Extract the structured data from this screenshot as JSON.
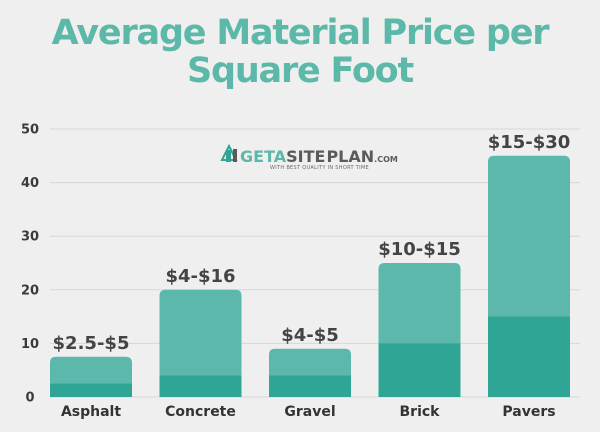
{
  "colors": {
    "background": "#efefef",
    "title": "#5cb8a8",
    "bar_upper": "#5cb8aa",
    "bar_lower": "#2fa595",
    "gridline": "#d7d7d7",
    "logo_dark": "#5a5a5a"
  },
  "logo": {
    "brand_get": "GET",
    "brand_a": "A",
    "brand_site": "SITE",
    "brand_plan": "PLAN",
    "brand_com": ".COM",
    "tagline": "WITH BEST QUALITY IN SHORT TIME"
  },
  "chart_data": {
    "type": "bar",
    "title_lines": [
      "Average Material Price per",
      "Square Foot"
    ],
    "xlabel": "",
    "ylabel": "",
    "ylim": [
      0,
      50
    ],
    "yticks": [
      0,
      10,
      20,
      30,
      40,
      50
    ],
    "grid": true,
    "categories": [
      "Asphalt",
      "Concrete",
      "Gravel",
      "Brick",
      "Pavers"
    ],
    "low_values": [
      2.5,
      4,
      4,
      10,
      15
    ],
    "high_values": [
      7.5,
      20,
      9,
      25,
      45
    ],
    "data_labels": [
      "$2.5-$5",
      "$4-$16",
      "$4-$5",
      "$10-$15",
      "$15-$30"
    ]
  }
}
